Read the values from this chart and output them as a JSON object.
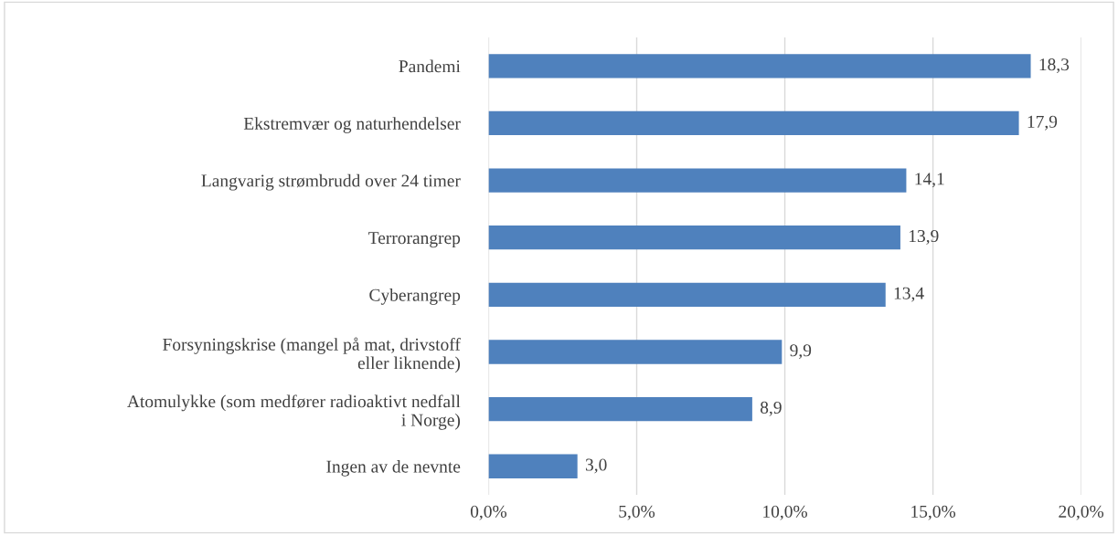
{
  "chart_data": {
    "type": "bar",
    "orientation": "horizontal",
    "categories": [
      "Pandemi",
      "Ekstremvær og naturhendelser",
      "Langvarig strømbrudd over 24 timer",
      "Terrorangrep",
      "Cyberangrep",
      "Forsyningskrise (mangel på mat, drivstoff eller liknende)",
      "Atomulykke (som medfører radioaktivt nedfall i Norge)",
      "Ingen av de nevnte"
    ],
    "values": [
      18.3,
      17.9,
      14.1,
      13.9,
      13.4,
      9.9,
      8.9,
      3.0
    ],
    "value_labels": [
      "18,3",
      "17,9",
      "14,1",
      "13,9",
      "13,4",
      "9,9",
      "8,9",
      "3,0"
    ],
    "color": "#4f81bd",
    "xlim": [
      0,
      20
    ],
    "xticks": [
      {
        "value": 0,
        "label": "0,0%"
      },
      {
        "value": 5,
        "label": "5,0%"
      },
      {
        "value": 10,
        "label": "10,0%"
      },
      {
        "value": 15,
        "label": "15,0%"
      },
      {
        "value": 20,
        "label": "20,0%"
      }
    ],
    "grid": "x"
  }
}
